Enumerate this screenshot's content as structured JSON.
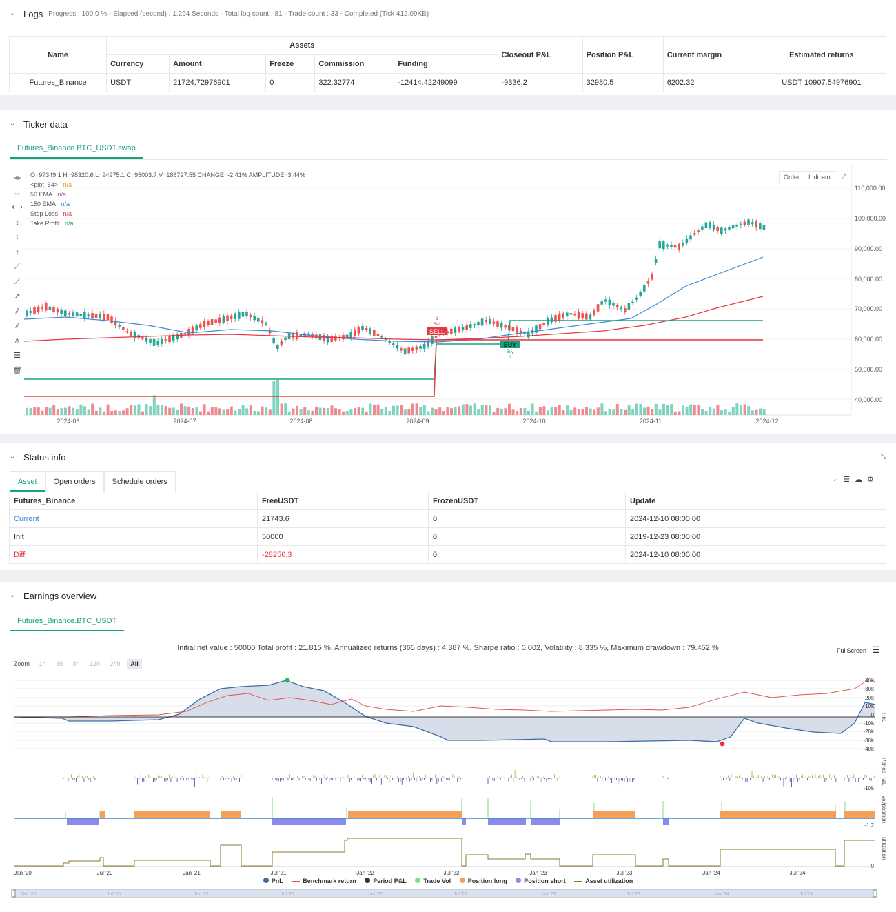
{
  "logs": {
    "title": "Logs",
    "summary": "Progress : 100.0 % - Elapsed (second) : 1.294 Seconds - Total log count : 81 - Trade count : 33 - Completed (Tick 412.09KB)",
    "table": {
      "name_header": "Name",
      "assets_header": "Assets",
      "sub_headers": [
        "Currency",
        "Amount",
        "Freeze",
        "Commission",
        "Funding"
      ],
      "other_headers": [
        "Closeout P&L",
        "Position P&L",
        "Current margin",
        "Estimated returns"
      ],
      "row": [
        "Futures_Binance",
        "USDT",
        "21724.72976901",
        "0",
        "322.32774",
        "-12414.42249099",
        "-9336.2",
        "32980.5",
        "6202.32",
        "USDT 10907.54976901"
      ]
    }
  },
  "ticker": {
    "title": "Ticker data",
    "tab": "Futures_Binance.BTC_USDT.swap",
    "ohlc": "O=97349.1 H=98320.6 L=94975.1 C=95003.7 V=188727.55 CHANGE=-2.41% AMPLITUDE=3.44%",
    "legend": [
      {
        "label": "<plot_64>",
        "value": "n/a",
        "color": "#e2a218"
      },
      {
        "label": "50 EMA",
        "value": "n/a",
        "color": "#9b59b6"
      },
      {
        "label": "150 EMA",
        "value": "n/a",
        "color": "#3b8ad9"
      },
      {
        "label": "Stop Loss",
        "value": "n/a",
        "color": "#e5393f"
      },
      {
        "label": "Take Profit",
        "value": "n/a",
        "color": "#14a37f"
      }
    ],
    "buttons": [
      "Order",
      "Indicator"
    ],
    "yticks": [
      "110,000.00",
      "100,000.00",
      "90,000.00",
      "80,000.00",
      "70,000.00",
      "60,000.00",
      "50,000.00",
      "40,000.00"
    ],
    "xticks": [
      "2024-06",
      "2024-07",
      "2024-08",
      "2024-09",
      "2024-10",
      "2024-11",
      "2024-12"
    ],
    "sell_label": "SELL",
    "buy_label": "BUY",
    "sell_small": "Sell",
    "buy_small": "Buy",
    "sell_num": "1",
    "buy_num": "1"
  },
  "status": {
    "title": "Status info",
    "tabs": [
      "Asset",
      "Open orders",
      "Schedule orders"
    ],
    "headers": [
      "Futures_Binance",
      "FreeUSDT",
      "FrozenUSDT",
      "Update"
    ],
    "rows": [
      [
        "Current",
        "21743.6",
        "0",
        "2024-12-10 08:00:00"
      ],
      [
        "Init",
        "50000",
        "0",
        "2019-12-23 08:00:00"
      ],
      [
        "Diff",
        "-28256.3",
        "0",
        "2024-12-10 08:00:00"
      ]
    ]
  },
  "earnings": {
    "title": "Earnings overview",
    "tab": "Futures_Binance.BTC_USDT",
    "summary": "Initial net value : 50000 Total profit : 21.815 %, Annualized returns (365 days) : 4.387 %, Sharpe ratio : 0.002, Volatility : 8.335 %, Maximum drawdown : 79.452 %",
    "fullscreen": "FullScreen",
    "zoom_label": "Zoom",
    "zoom_buttons": [
      "1h",
      "3h",
      "8h",
      "12h",
      "24h",
      "All"
    ],
    "pnl_ticks": [
      "40k",
      "30k",
      "20k",
      "10k",
      "0",
      "-10k",
      "-20k",
      "-30k",
      "-40k"
    ],
    "axis_titles": [
      "PnL",
      "Period P&L",
      "vol/position",
      "utilization"
    ],
    "period_tick": "-10k",
    "pos_tick": "-1.2",
    "util_tick": "0",
    "xticks": [
      "Jan '20",
      "Jul '20",
      "Jan '21",
      "Jul '21",
      "Jan '22",
      "Jul '22",
      "Jan '23",
      "Jul '23",
      "Jan '24",
      "Jul '24"
    ],
    "legend": [
      {
        "label": "PnL",
        "color": "#3a6ea5"
      },
      {
        "label": "Benchmark return",
        "color": "#d9534f"
      },
      {
        "label": "Period P&L",
        "color": "#333333"
      },
      {
        "label": "Trade Vol",
        "color": "#7ee07e"
      },
      {
        "label": "Position long",
        "color": "#f5a05a"
      },
      {
        "label": "Position short",
        "color": "#8c8ce8"
      },
      {
        "label": "Asset utilization",
        "color": "#8a7a2a"
      }
    ]
  }
}
